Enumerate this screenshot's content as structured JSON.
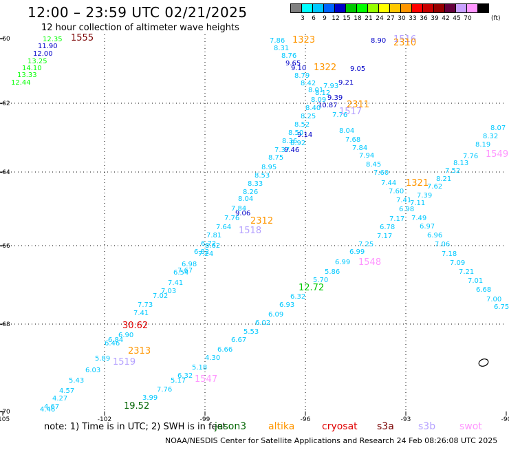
{
  "header": {
    "title": "12:00 – 23:59 UTC 02/21/2025",
    "subtitle": "12 hour collection of altimeter wave heights"
  },
  "legend": {
    "colors": [
      "#808080",
      "#00ffff",
      "#00c8ff",
      "#0064ff",
      "#0000c8",
      "#00c800",
      "#00ff00",
      "#96ff00",
      "#ffff00",
      "#ffc800",
      "#ff9600",
      "#ff0000",
      "#c80000",
      "#960000",
      "#64003c",
      "#c8a0ff",
      "#ff96ff",
      "#000000"
    ],
    "labels": [
      "3",
      "6",
      "9",
      "12",
      "15",
      "18",
      "21",
      "24",
      "27",
      "30",
      "33",
      "36",
      "39",
      "42",
      "45",
      "70"
    ],
    "unit": "(ft)"
  },
  "axes": {
    "lon_labels": [
      "-105",
      "-102",
      "-99",
      "-96",
      "-93",
      "-90"
    ],
    "lat_labels": [
      "-60",
      "-62",
      "-64",
      "-66",
      "-68",
      "-70"
    ]
  },
  "footer": {
    "note": "note:  1) Time is in UTC; 2) SWH is in feet",
    "satellites": [
      {
        "name": "jason3",
        "color": "#006400"
      },
      {
        "name": "altika",
        "color": "#ff9600"
      },
      {
        "name": "cryosat",
        "color": "#e00000"
      },
      {
        "name": "s3a",
        "color": "#7a0000"
      },
      {
        "name": "s3b",
        "color": "#b4a0ff"
      },
      {
        "name": "swot",
        "color": "#ff96ff"
      }
    ],
    "credit": "NOAA/NESDIS Center for Satellite Applications and Research    24 Feb 08:26:08 UTC 2025"
  },
  "map_labels": [
    {
      "text": "1555",
      "color": "#7a0000"
    },
    {
      "text": "1323",
      "color": "#ff9600"
    },
    {
      "text": "1516",
      "color": "#b4a0ff"
    },
    {
      "text": "2310",
      "color": "#ff9600"
    },
    {
      "text": "1322",
      "color": "#ff9600"
    },
    {
      "text": "2311",
      "color": "#ff9600"
    },
    {
      "text": "1517",
      "color": "#b4a0ff"
    },
    {
      "text": "1549",
      "color": "#ff96ff"
    },
    {
      "text": "1321",
      "color": "#ff9600"
    },
    {
      "text": "2312",
      "color": "#ff9600"
    },
    {
      "text": "1518",
      "color": "#b4a0ff"
    },
    {
      "text": "1548",
      "color": "#ff96ff"
    },
    {
      "text": "30.62",
      "color": "#e00000"
    },
    {
      "text": "2313",
      "color": "#ff9600"
    },
    {
      "text": "1519",
      "color": "#b4a0ff"
    },
    {
      "text": "1547",
      "color": "#ff96ff"
    },
    {
      "text": "12.72",
      "color": "#00c800"
    },
    {
      "text": "19.52",
      "color": "#006400"
    }
  ],
  "swh_values": [
    {
      "text": "12.35",
      "color": "#00ff00"
    },
    {
      "text": "11.90",
      "color": "#0000c8"
    },
    {
      "text": "12.00",
      "color": "#0000c8"
    },
    {
      "text": "13.25",
      "color": "#00ff00"
    },
    {
      "text": "14.10",
      "color": "#00ff00"
    },
    {
      "text": "13.33",
      "color": "#00ff00"
    },
    {
      "text": "12.44",
      "color": "#00ff00"
    },
    {
      "text": "7.86",
      "color": "#00c8ff"
    },
    {
      "text": "8.31",
      "color": "#00c8ff"
    },
    {
      "text": "8.76",
      "color": "#00c8ff"
    },
    {
      "text": "9.65",
      "color": "#0000c8"
    },
    {
      "text": "9.10",
      "color": "#0000c8"
    },
    {
      "text": "8.79",
      "color": "#00c8ff"
    },
    {
      "text": "8.42",
      "color": "#00c8ff"
    },
    {
      "text": "8.01",
      "color": "#00c8ff"
    },
    {
      "text": "8.90",
      "color": "#0000c8"
    },
    {
      "text": "9.05",
      "color": "#0000c8"
    },
    {
      "text": "9.21",
      "color": "#0000c8"
    },
    {
      "text": "9.39",
      "color": "#0000c8"
    },
    {
      "text": "10.87",
      "color": "#0000c8"
    },
    {
      "text": "7.76",
      "color": "#00c8ff"
    },
    {
      "text": "8.04",
      "color": "#00c8ff"
    },
    {
      "text": "7.68",
      "color": "#00c8ff"
    },
    {
      "text": "7.84",
      "color": "#00c8ff"
    },
    {
      "text": "7.94",
      "color": "#00c8ff"
    },
    {
      "text": "8.45",
      "color": "#00c8ff"
    },
    {
      "text": "7.60",
      "color": "#00c8ff"
    },
    {
      "text": "9.14",
      "color": "#0000c8"
    },
    {
      "text": "9.46",
      "color": "#0000c8"
    },
    {
      "text": "8.92",
      "color": "#00c8ff"
    },
    {
      "text": "7.44",
      "color": "#00c8ff"
    },
    {
      "text": "7.60",
      "color": "#00c8ff"
    },
    {
      "text": "7.62",
      "color": "#00c8ff"
    },
    {
      "text": "7.39",
      "color": "#00c8ff"
    },
    {
      "text": "7.41",
      "color": "#00c8ff"
    },
    {
      "text": "7.11",
      "color": "#00c8ff"
    },
    {
      "text": "6.98",
      "color": "#00c8ff"
    },
    {
      "text": "7.49",
      "color": "#00c8ff"
    },
    {
      "text": "7.17",
      "color": "#00c8ff"
    },
    {
      "text": "6.78",
      "color": "#00c8ff"
    },
    {
      "text": "6.97",
      "color": "#00c8ff"
    },
    {
      "text": "7.17",
      "color": "#00c8ff"
    },
    {
      "text": "6.96",
      "color": "#00c8ff"
    },
    {
      "text": "7.25",
      "color": "#00c8ff"
    },
    {
      "text": "7.06",
      "color": "#00c8ff"
    },
    {
      "text": "6.99",
      "color": "#00c8ff"
    },
    {
      "text": "7.18",
      "color": "#00c8ff"
    },
    {
      "text": "6.99",
      "color": "#00c8ff"
    },
    {
      "text": "7.09",
      "color": "#00c8ff"
    },
    {
      "text": "5.86",
      "color": "#00c8ff"
    },
    {
      "text": "7.21",
      "color": "#00c8ff"
    },
    {
      "text": "5.70",
      "color": "#00c8ff"
    },
    {
      "text": "7.01",
      "color": "#00c8ff"
    },
    {
      "text": "6.68",
      "color": "#00c8ff"
    },
    {
      "text": "6.32",
      "color": "#00c8ff"
    },
    {
      "text": "7.00",
      "color": "#00c8ff"
    },
    {
      "text": "6.75",
      "color": "#00c8ff"
    },
    {
      "text": "6.93",
      "color": "#00c8ff"
    },
    {
      "text": "6.09",
      "color": "#00c8ff"
    },
    {
      "text": "6.02",
      "color": "#00c8ff"
    },
    {
      "text": "5.53",
      "color": "#00c8ff"
    },
    {
      "text": "6.67",
      "color": "#00c8ff"
    },
    {
      "text": "6.66",
      "color": "#00c8ff"
    },
    {
      "text": "4.30",
      "color": "#00c8ff"
    },
    {
      "text": "5.18",
      "color": "#00c8ff"
    },
    {
      "text": "6.32",
      "color": "#00c8ff"
    },
    {
      "text": "5.17",
      "color": "#00c8ff"
    },
    {
      "text": "7.76",
      "color": "#00c8ff"
    },
    {
      "text": "3.99",
      "color": "#00c8ff"
    },
    {
      "text": "7.76",
      "color": "#00c8ff"
    },
    {
      "text": "8.13",
      "color": "#00c8ff"
    },
    {
      "text": "8.19",
      "color": "#00c8ff"
    },
    {
      "text": "8.32",
      "color": "#00c8ff"
    },
    {
      "text": "8.07",
      "color": "#00c8ff"
    },
    {
      "text": "8.21",
      "color": "#00c8ff"
    },
    {
      "text": "7.52",
      "color": "#00c8ff"
    },
    {
      "text": "9.06",
      "color": "#0000c8"
    },
    {
      "text": "6.90",
      "color": "#00c8ff"
    },
    {
      "text": "6.46",
      "color": "#00c8ff"
    },
    {
      "text": "6.84",
      "color": "#00c8ff"
    },
    {
      "text": "5.89",
      "color": "#00c8ff"
    },
    {
      "text": "6.03",
      "color": "#00c8ff"
    },
    {
      "text": "5.43",
      "color": "#00c8ff"
    },
    {
      "text": "4.57",
      "color": "#00c8ff"
    },
    {
      "text": "4.27",
      "color": "#00c8ff"
    },
    {
      "text": "4.67",
      "color": "#00c8ff"
    },
    {
      "text": "4.46",
      "color": "#00c8ff"
    },
    {
      "text": "7.02",
      "color": "#00c8ff"
    },
    {
      "text": "7.41",
      "color": "#00c8ff"
    },
    {
      "text": "7.03",
      "color": "#00c8ff"
    },
    {
      "text": "7.67",
      "color": "#00c8ff"
    },
    {
      "text": "6.54",
      "color": "#00c8ff"
    },
    {
      "text": "6.98",
      "color": "#00c8ff"
    },
    {
      "text": "6.82",
      "color": "#00c8ff"
    },
    {
      "text": "6.72",
      "color": "#00c8ff"
    },
    {
      "text": "7.81",
      "color": "#00c8ff"
    },
    {
      "text": "7.64",
      "color": "#00c8ff"
    },
    {
      "text": "7.76",
      "color": "#00c8ff"
    },
    {
      "text": "7.84",
      "color": "#00c8ff"
    },
    {
      "text": "8.04",
      "color": "#00c8ff"
    },
    {
      "text": "8.26",
      "color": "#00c8ff"
    },
    {
      "text": "8.33",
      "color": "#00c8ff"
    },
    {
      "text": "8.53",
      "color": "#00c8ff"
    },
    {
      "text": "8.95",
      "color": "#00c8ff"
    },
    {
      "text": "8.75",
      "color": "#00c8ff"
    },
    {
      "text": "7.37",
      "color": "#00c8ff"
    },
    {
      "text": "7.24",
      "color": "#00c8ff"
    },
    {
      "text": "8.62",
      "color": "#00c8ff"
    },
    {
      "text": "8.36",
      "color": "#00c8ff"
    },
    {
      "text": "8.50",
      "color": "#00c8ff"
    },
    {
      "text": "8.52",
      "color": "#00c8ff"
    },
    {
      "text": "8.25",
      "color": "#00c8ff"
    },
    {
      "text": "8.40",
      "color": "#00c8ff"
    },
    {
      "text": "8.09",
      "color": "#00c8ff"
    },
    {
      "text": "8.12",
      "color": "#00c8ff"
    },
    {
      "text": "7.93",
      "color": "#00c8ff"
    },
    {
      "text": "7.73",
      "color": "#00c8ff"
    },
    {
      "text": "7.41",
      "color": "#00c8ff"
    }
  ]
}
